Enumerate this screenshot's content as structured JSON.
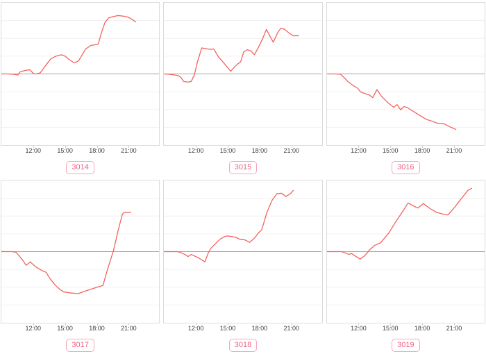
{
  "colors": {
    "line": "#f4625d",
    "baseline": "#a3a3a3",
    "grid": "#f0f0f0",
    "card_border": "#dcdcdc",
    "tick_text": "#3c3c3c",
    "tick_mark": "#cccccc",
    "badge_text": "#ec6484",
    "badge_border": "#f7a4bb",
    "badge_bg": "#ffffff",
    "title_fragment": "#a2a28e",
    "background": "#ffffff"
  },
  "title_cropped_fragment": "(%)",
  "axis": {
    "x_range": [
      9,
      24
    ],
    "y_range": [
      -4,
      4
    ],
    "grid_divisions": 8,
    "baseline_value": 0,
    "grid": "horizontal-only",
    "x_ticks": [
      {
        "label": "12:00",
        "pos": 0.204
      },
      {
        "label": "15:00",
        "pos": 0.404
      },
      {
        "label": "18:00",
        "pos": 0.604
      },
      {
        "label": "21:00",
        "pos": 0.804
      }
    ]
  },
  "chart_data": [
    {
      "type": "line",
      "label": "3014",
      "x_unit": "time-of-day-hours",
      "y_unit": "percent-change-from-baseline",
      "points": [
        [
          9.0,
          0
        ],
        [
          9.6,
          0
        ],
        [
          10.2,
          -0.02
        ],
        [
          10.55,
          -0.06
        ],
        [
          10.8,
          0.12
        ],
        [
          11.3,
          0.2
        ],
        [
          11.7,
          0.23
        ],
        [
          12.05,
          0.02
        ],
        [
          12.35,
          0.0
        ],
        [
          12.7,
          0.06
        ],
        [
          13.3,
          0.55
        ],
        [
          13.7,
          0.85
        ],
        [
          14.2,
          1.0
        ],
        [
          14.7,
          1.08
        ],
        [
          15.05,
          1.0
        ],
        [
          15.5,
          0.78
        ],
        [
          15.95,
          0.62
        ],
        [
          16.35,
          0.75
        ],
        [
          16.7,
          1.1
        ],
        [
          17.0,
          1.4
        ],
        [
          17.5,
          1.6
        ],
        [
          18.0,
          1.65
        ],
        [
          18.2,
          1.68
        ],
        [
          18.5,
          2.3
        ],
        [
          18.85,
          2.9
        ],
        [
          19.2,
          3.15
        ],
        [
          19.6,
          3.22
        ],
        [
          20.1,
          3.28
        ],
        [
          20.6,
          3.25
        ],
        [
          21.0,
          3.2
        ],
        [
          21.4,
          3.08
        ],
        [
          21.75,
          2.92
        ]
      ]
    },
    {
      "type": "line",
      "label": "3015",
      "x_unit": "time-of-day-hours",
      "y_unit": "percent-change-from-baseline",
      "points": [
        [
          9.0,
          0
        ],
        [
          9.5,
          -0.02
        ],
        [
          10.3,
          -0.08
        ],
        [
          10.6,
          -0.18
        ],
        [
          10.9,
          -0.43
        ],
        [
          11.3,
          -0.46
        ],
        [
          11.6,
          -0.42
        ],
        [
          11.9,
          -0.05
        ],
        [
          12.2,
          0.7
        ],
        [
          12.6,
          1.46
        ],
        [
          13.0,
          1.42
        ],
        [
          13.4,
          1.38
        ],
        [
          13.75,
          1.4
        ],
        [
          14.2,
          0.95
        ],
        [
          14.6,
          0.68
        ],
        [
          15.0,
          0.4
        ],
        [
          15.35,
          0.15
        ],
        [
          15.7,
          0.38
        ],
        [
          16.0,
          0.55
        ],
        [
          16.3,
          0.68
        ],
        [
          16.6,
          1.25
        ],
        [
          16.95,
          1.36
        ],
        [
          17.3,
          1.28
        ],
        [
          17.6,
          1.08
        ],
        [
          18.0,
          1.5
        ],
        [
          18.4,
          2.0
        ],
        [
          18.75,
          2.5
        ],
        [
          19.1,
          2.1
        ],
        [
          19.4,
          1.78
        ],
        [
          19.8,
          2.3
        ],
        [
          20.1,
          2.56
        ],
        [
          20.45,
          2.52
        ],
        [
          20.9,
          2.3
        ],
        [
          21.3,
          2.14
        ],
        [
          21.8,
          2.15
        ]
      ]
    },
    {
      "type": "line",
      "label": "3016",
      "x_unit": "time-of-day-hours",
      "y_unit": "percent-change-from-baseline",
      "points": [
        [
          9.0,
          0
        ],
        [
          9.7,
          0
        ],
        [
          10.3,
          -0.02
        ],
        [
          10.7,
          -0.25
        ],
        [
          11.0,
          -0.44
        ],
        [
          11.4,
          -0.62
        ],
        [
          11.9,
          -0.8
        ],
        [
          12.2,
          -1.02
        ],
        [
          12.6,
          -1.1
        ],
        [
          13.0,
          -1.18
        ],
        [
          13.35,
          -1.33
        ],
        [
          13.75,
          -0.88
        ],
        [
          14.2,
          -1.27
        ],
        [
          14.85,
          -1.65
        ],
        [
          15.35,
          -1.88
        ],
        [
          15.65,
          -1.72
        ],
        [
          16.0,
          -2.02
        ],
        [
          16.3,
          -1.84
        ],
        [
          16.6,
          -1.88
        ],
        [
          17.5,
          -2.22
        ],
        [
          18.45,
          -2.56
        ],
        [
          19.1,
          -2.68
        ],
        [
          19.4,
          -2.76
        ],
        [
          20.1,
          -2.8
        ],
        [
          20.7,
          -2.98
        ],
        [
          21.25,
          -3.12
        ]
      ]
    },
    {
      "type": "line",
      "label": "3017",
      "x_unit": "time-of-day-hours",
      "y_unit": "percent-change-from-baseline",
      "points": [
        [
          9.0,
          0
        ],
        [
          10.0,
          0
        ],
        [
          10.4,
          -0.04
        ],
        [
          11.0,
          -0.46
        ],
        [
          11.35,
          -0.77
        ],
        [
          11.75,
          -0.58
        ],
        [
          12.25,
          -0.85
        ],
        [
          12.9,
          -1.08
        ],
        [
          13.25,
          -1.16
        ],
        [
          13.6,
          -1.5
        ],
        [
          14.1,
          -1.87
        ],
        [
          14.55,
          -2.12
        ],
        [
          14.9,
          -2.26
        ],
        [
          15.5,
          -2.32
        ],
        [
          16.3,
          -2.36
        ],
        [
          17.15,
          -2.18
        ],
        [
          18.1,
          -2.0
        ],
        [
          18.65,
          -1.9
        ],
        [
          19.1,
          -0.97
        ],
        [
          19.65,
          0.05
        ],
        [
          20.1,
          1.2
        ],
        [
          20.5,
          2.1
        ],
        [
          20.65,
          2.2
        ],
        [
          21.3,
          2.2
        ]
      ]
    },
    {
      "type": "line",
      "label": "3018",
      "x_unit": "time-of-day-hours",
      "y_unit": "percent-change-from-baseline",
      "points": [
        [
          9.0,
          0
        ],
        [
          10.3,
          0
        ],
        [
          10.6,
          -0.05
        ],
        [
          11.0,
          -0.16
        ],
        [
          11.3,
          -0.28
        ],
        [
          11.6,
          -0.16
        ],
        [
          12.3,
          -0.35
        ],
        [
          12.9,
          -0.58
        ],
        [
          13.2,
          -0.1
        ],
        [
          13.45,
          0.17
        ],
        [
          13.9,
          0.44
        ],
        [
          14.35,
          0.7
        ],
        [
          14.75,
          0.84
        ],
        [
          15.0,
          0.88
        ],
        [
          15.5,
          0.85
        ],
        [
          15.85,
          0.8
        ],
        [
          16.2,
          0.7
        ],
        [
          16.7,
          0.66
        ],
        [
          17.15,
          0.52
        ],
        [
          17.6,
          0.75
        ],
        [
          18.0,
          1.06
        ],
        [
          18.3,
          1.22
        ],
        [
          18.8,
          2.22
        ],
        [
          19.3,
          2.9
        ],
        [
          19.75,
          3.26
        ],
        [
          20.2,
          3.28
        ],
        [
          20.6,
          3.1
        ],
        [
          21.05,
          3.27
        ],
        [
          21.3,
          3.44
        ]
      ]
    },
    {
      "type": "line",
      "label": "3019",
      "x_unit": "time-of-day-hours",
      "y_unit": "percent-change-from-baseline",
      "points": [
        [
          9.0,
          0
        ],
        [
          10.4,
          0
        ],
        [
          10.85,
          -0.1
        ],
        [
          11.1,
          -0.16
        ],
        [
          11.3,
          -0.1
        ],
        [
          11.75,
          -0.27
        ],
        [
          12.15,
          -0.42
        ],
        [
          12.6,
          -0.22
        ],
        [
          13.05,
          0.1
        ],
        [
          13.55,
          0.36
        ],
        [
          14.1,
          0.5
        ],
        [
          14.9,
          1.07
        ],
        [
          15.5,
          1.65
        ],
        [
          16.15,
          2.22
        ],
        [
          16.7,
          2.73
        ],
        [
          17.35,
          2.53
        ],
        [
          17.65,
          2.45
        ],
        [
          18.15,
          2.7
        ],
        [
          18.8,
          2.42
        ],
        [
          19.45,
          2.2
        ],
        [
          20.1,
          2.1
        ],
        [
          20.5,
          2.06
        ],
        [
          21.1,
          2.47
        ],
        [
          21.7,
          2.93
        ],
        [
          22.4,
          3.45
        ],
        [
          22.75,
          3.56
        ]
      ]
    }
  ]
}
